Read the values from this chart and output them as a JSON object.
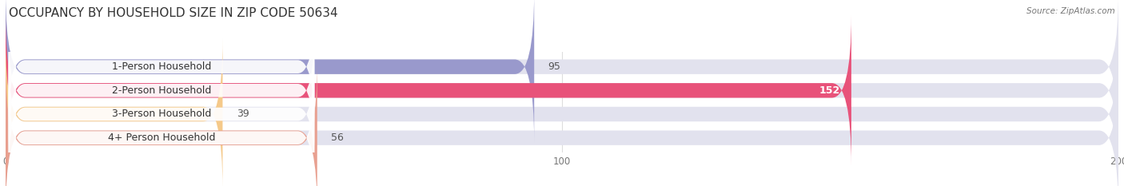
{
  "title": "OCCUPANCY BY HOUSEHOLD SIZE IN ZIP CODE 50634",
  "source": "Source: ZipAtlas.com",
  "categories": [
    "1-Person Household",
    "2-Person Household",
    "3-Person Household",
    "4+ Person Household"
  ],
  "values": [
    95,
    152,
    39,
    56
  ],
  "bar_colors": [
    "#9999cc",
    "#e8527a",
    "#f5c98a",
    "#e8a090"
  ],
  "bar_bg_color": "#e2e2ee",
  "label_bg_color": "#ffffff",
  "xlim": [
    0,
    200
  ],
  "xticks": [
    0,
    100,
    200
  ],
  "background_color": "#ffffff",
  "title_fontsize": 11,
  "label_fontsize": 9,
  "value_fontsize": 9,
  "bar_height": 0.62,
  "figsize": [
    14.06,
    2.33
  ],
  "dpi": 100
}
